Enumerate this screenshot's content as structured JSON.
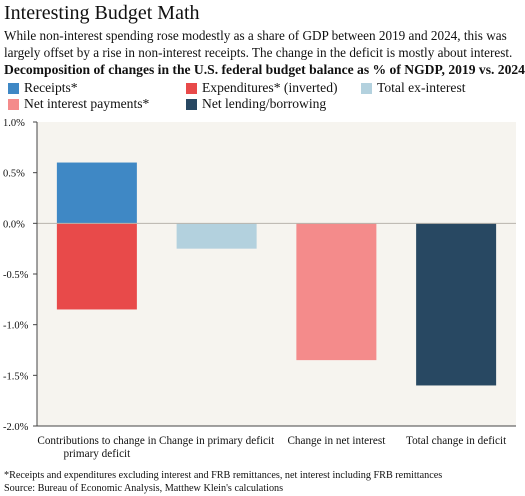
{
  "header": {
    "title": "Interesting Budget Math",
    "subtitle": "While non-interest spending rose modestly as a share of GDP between 2019 and 2024, this was largely offset by a rise in non-interest receipts. The change in the deficit is mostly about interest.",
    "chart_title": "Decomposition of changes in the U.S. federal budget balance as % of NGDP, 2019 vs. 2024"
  },
  "footer": {
    "footnote": "*Receipts and expenditures excluding interest and FRB remittances, net interest including FRB remittances",
    "source": "Source: Bureau of Economic Analysis, Matthew Klein's calculations"
  },
  "colors": {
    "receipts": "#3f88c5",
    "expenditures": "#e84a4a",
    "total_ex_interest": "#b3d1de",
    "net_interest": "#f48b8b",
    "net_lending": "#284862",
    "plot_bg": "#f6f4ef"
  },
  "chart_data": {
    "type": "bar",
    "stacked": true,
    "categories": [
      "Contributions to change in primary deficit",
      "Change in primary deficit",
      "Change in net interest",
      "Total change in deficit"
    ],
    "series": [
      {
        "name": "Receipts*",
        "color_key": "receipts",
        "values": [
          0.6,
          null,
          null,
          null
        ]
      },
      {
        "name": "Expenditures* (inverted)",
        "color_key": "expenditures",
        "values": [
          -0.85,
          null,
          null,
          null
        ]
      },
      {
        "name": "Total ex-interest",
        "color_key": "total_ex_interest",
        "values": [
          null,
          -0.25,
          null,
          null
        ]
      },
      {
        "name": "Net interest payments*",
        "color_key": "net_interest",
        "values": [
          null,
          null,
          -1.35,
          null
        ]
      },
      {
        "name": "Net lending/borrowing",
        "color_key": "net_lending",
        "values": [
          null,
          null,
          null,
          -1.6
        ]
      }
    ],
    "y_ticks": [
      "1.0%",
      "0.5%",
      "0.0%",
      "-0.5%",
      "-1.0%",
      "-1.5%",
      "-2.0%"
    ],
    "ylim": [
      -2.0,
      1.0
    ],
    "grid": false,
    "legend": "top-left"
  }
}
